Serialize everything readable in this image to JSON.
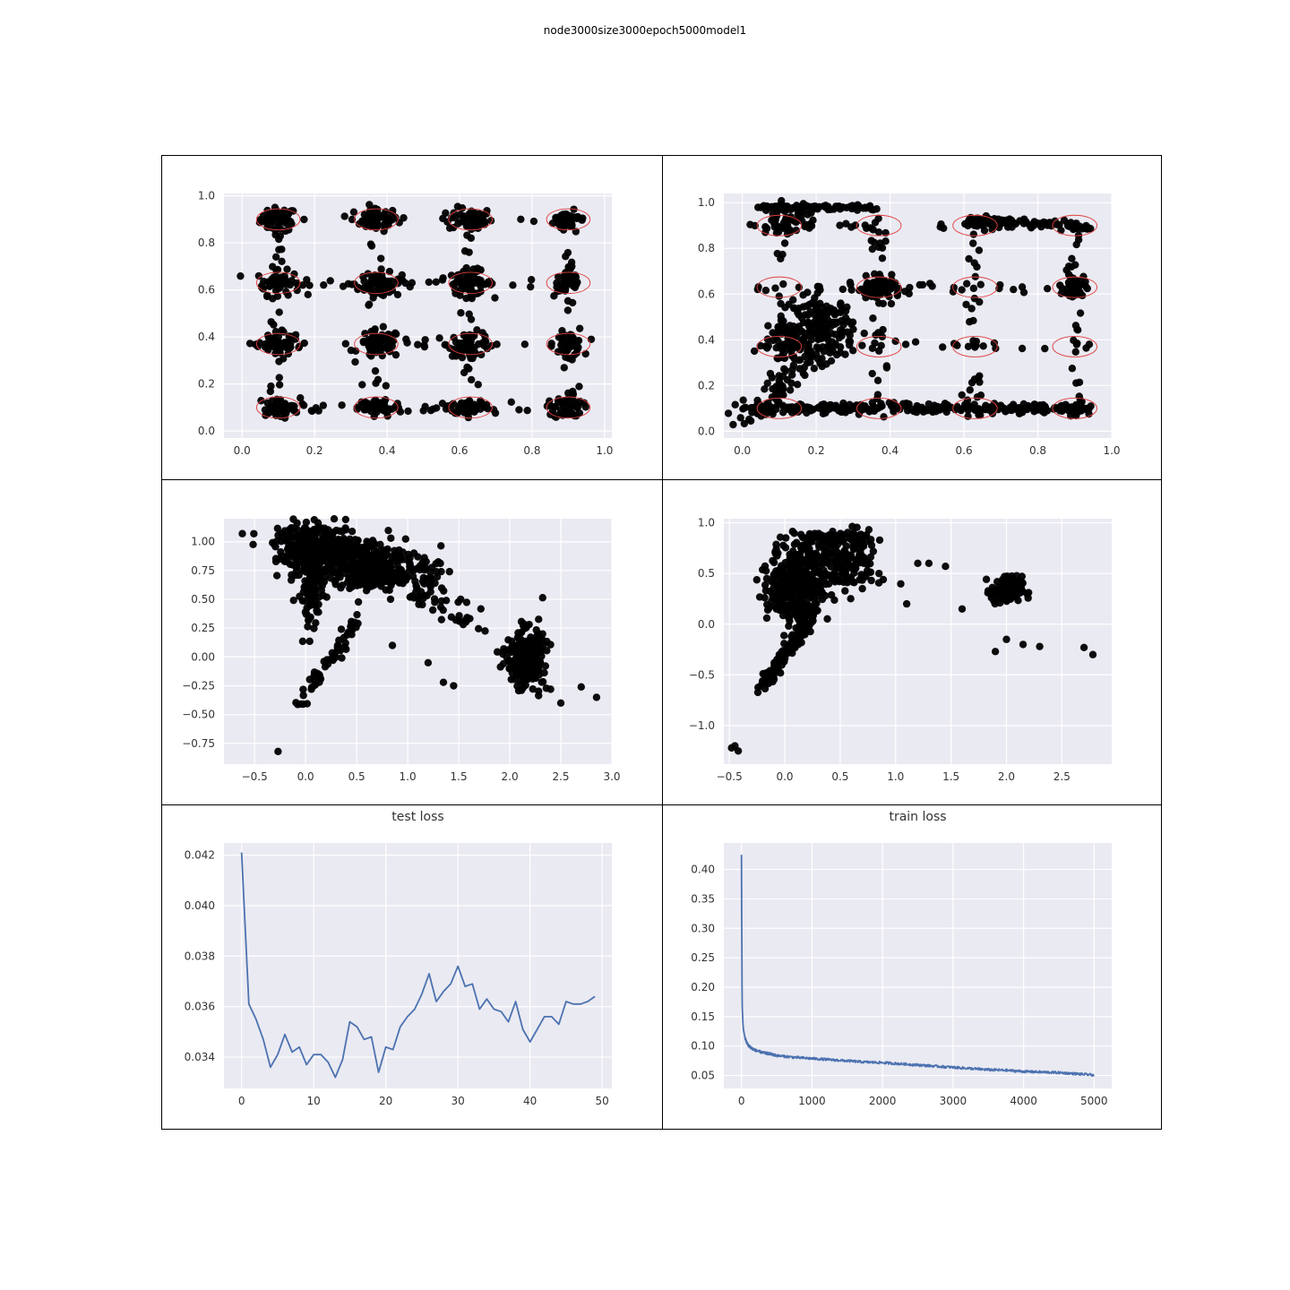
{
  "figure": {
    "title": "node3000size3000epoch5000model1"
  },
  "chart_data": [
    {
      "id": "top-left",
      "type": "scatter",
      "title": "",
      "xlabel": "",
      "ylabel": "",
      "xlim": [
        -0.05,
        1.02
      ],
      "ylim": [
        -0.03,
        1.01
      ],
      "xticks": [
        "0.0",
        "0.2",
        "0.4",
        "0.6",
        "0.8",
        "1.0"
      ],
      "yticks": [
        "0.0",
        "0.2",
        "0.4",
        "0.6",
        "0.8",
        "1.0"
      ],
      "grid": true,
      "points_color": "#000000",
      "circle_color": "#e04040",
      "clusters": [
        {
          "cx": 0.1,
          "cy": 0.9,
          "n": 45,
          "sx": 0.025,
          "sy": 0.025
        },
        {
          "cx": 0.37,
          "cy": 0.9,
          "n": 45,
          "sx": 0.03,
          "sy": 0.025
        },
        {
          "cx": 0.63,
          "cy": 0.9,
          "n": 45,
          "sx": 0.03,
          "sy": 0.025
        },
        {
          "cx": 0.9,
          "cy": 0.9,
          "n": 30,
          "sx": 0.02,
          "sy": 0.02
        },
        {
          "cx": 0.1,
          "cy": 0.63,
          "n": 45,
          "sx": 0.03,
          "sy": 0.025
        },
        {
          "cx": 0.38,
          "cy": 0.62,
          "n": 60,
          "sx": 0.03,
          "sy": 0.025
        },
        {
          "cx": 0.63,
          "cy": 0.63,
          "n": 50,
          "sx": 0.03,
          "sy": 0.025
        },
        {
          "cx": 0.9,
          "cy": 0.63,
          "n": 35,
          "sx": 0.02,
          "sy": 0.03
        },
        {
          "cx": 0.1,
          "cy": 0.37,
          "n": 40,
          "sx": 0.03,
          "sy": 0.025
        },
        {
          "cx": 0.38,
          "cy": 0.37,
          "n": 60,
          "sx": 0.03,
          "sy": 0.03
        },
        {
          "cx": 0.63,
          "cy": 0.37,
          "n": 50,
          "sx": 0.03,
          "sy": 0.025
        },
        {
          "cx": 0.9,
          "cy": 0.37,
          "n": 40,
          "sx": 0.02,
          "sy": 0.025
        },
        {
          "cx": 0.1,
          "cy": 0.1,
          "n": 40,
          "sx": 0.03,
          "sy": 0.02
        },
        {
          "cx": 0.38,
          "cy": 0.1,
          "n": 50,
          "sx": 0.03,
          "sy": 0.02
        },
        {
          "cx": 0.63,
          "cy": 0.1,
          "n": 40,
          "sx": 0.03,
          "sy": 0.015
        },
        {
          "cx": 0.9,
          "cy": 0.1,
          "n": 45,
          "sx": 0.02,
          "sy": 0.025
        }
      ],
      "scatter_noise": 260,
      "circles": [
        [
          0.1,
          0.9
        ],
        [
          0.37,
          0.9
        ],
        [
          0.63,
          0.9
        ],
        [
          0.9,
          0.9
        ],
        [
          0.1,
          0.63
        ],
        [
          0.37,
          0.63
        ],
        [
          0.63,
          0.63
        ],
        [
          0.9,
          0.63
        ],
        [
          0.1,
          0.37
        ],
        [
          0.37,
          0.37
        ],
        [
          0.63,
          0.37
        ],
        [
          0.9,
          0.37
        ],
        [
          0.1,
          0.1
        ],
        [
          0.37,
          0.1
        ],
        [
          0.63,
          0.1
        ],
        [
          0.9,
          0.1
        ]
      ],
      "circle_r": [
        0.06,
        0.06
      ]
    },
    {
      "id": "top-right",
      "type": "scatter",
      "title": "",
      "xlabel": "",
      "ylabel": "",
      "xlim": [
        -0.05,
        1.0
      ],
      "ylim": [
        -0.03,
        1.04
      ],
      "xticks": [
        "0.0",
        "0.2",
        "0.4",
        "0.6",
        "0.8",
        "1.0"
      ],
      "yticks": [
        "0.0",
        "0.2",
        "0.4",
        "0.6",
        "0.8",
        "1.0"
      ],
      "grid": true,
      "points_color": "#000000",
      "circle_color": "#e04040",
      "clusters": [
        {
          "cx": 0.22,
          "cy": 0.45,
          "n": 160,
          "sx": 0.04,
          "sy": 0.07
        },
        {
          "cx": 0.37,
          "cy": 0.62,
          "n": 70,
          "sx": 0.03,
          "sy": 0.025
        },
        {
          "cx": 0.12,
          "cy": 0.4,
          "n": 60,
          "sx": 0.02,
          "sy": 0.06
        },
        {
          "cx": 0.9,
          "cy": 0.63,
          "n": 40,
          "sx": 0.015,
          "sy": 0.03
        },
        {
          "cx": 0.12,
          "cy": 0.93,
          "n": 40,
          "sx": 0.03,
          "sy": 0.03
        }
      ],
      "lines": [
        {
          "x0": 0.0,
          "y0": 0.1,
          "x1": 0.95,
          "y1": 0.1,
          "n": 260,
          "jitter": 0.01
        },
        {
          "x0": 0.05,
          "y0": 0.98,
          "x1": 0.37,
          "y1": 0.98,
          "n": 80,
          "jitter": 0.006
        },
        {
          "x0": 0.6,
          "y0": 0.92,
          "x1": 0.93,
          "y1": 0.9,
          "n": 90,
          "jitter": 0.012
        },
        {
          "x0": 0.0,
          "y0": 0.03,
          "x1": 0.2,
          "y1": 0.35,
          "n": 60,
          "jitter": 0.02
        }
      ],
      "scatter_noise": 260,
      "circles": [
        [
          0.1,
          0.9
        ],
        [
          0.37,
          0.9
        ],
        [
          0.63,
          0.9
        ],
        [
          0.9,
          0.9
        ],
        [
          0.1,
          0.63
        ],
        [
          0.37,
          0.63
        ],
        [
          0.63,
          0.63
        ],
        [
          0.9,
          0.63
        ],
        [
          0.1,
          0.37
        ],
        [
          0.37,
          0.37
        ],
        [
          0.63,
          0.37
        ],
        [
          0.9,
          0.37
        ],
        [
          0.1,
          0.1
        ],
        [
          0.37,
          0.1
        ],
        [
          0.63,
          0.1
        ],
        [
          0.9,
          0.1
        ]
      ],
      "circle_r": [
        0.06,
        0.06
      ]
    },
    {
      "id": "middle-left",
      "type": "scatter",
      "title": "",
      "xlabel": "",
      "ylabel": "",
      "xlim": [
        -0.8,
        3.0
      ],
      "ylim": [
        -0.93,
        1.2
      ],
      "xticks": [
        "−0.5",
        "0.0",
        "0.5",
        "1.0",
        "1.5",
        "2.0",
        "2.5",
        "3.0"
      ],
      "yticks": [
        "−0.75",
        "−0.50",
        "−0.25",
        "0.00",
        "0.25",
        "0.50",
        "0.75",
        "1.00"
      ],
      "grid": true,
      "points_color": "#000000",
      "clusters": [
        {
          "cx": 0.1,
          "cy": 0.95,
          "n": 300,
          "sx": 0.2,
          "sy": 0.1
        },
        {
          "cx": 0.5,
          "cy": 0.82,
          "n": 300,
          "sx": 0.25,
          "sy": 0.12
        },
        {
          "cx": 0.9,
          "cy": 0.72,
          "n": 120,
          "sx": 0.2,
          "sy": 0.08
        },
        {
          "cx": 2.15,
          "cy": 0.0,
          "n": 260,
          "sx": 0.09,
          "sy": 0.12
        },
        {
          "cx": 0.05,
          "cy": 0.55,
          "n": 80,
          "sx": 0.06,
          "sy": 0.15
        }
      ],
      "lines": [
        {
          "x0": -0.1,
          "y0": -0.45,
          "x1": 0.5,
          "y1": 0.3,
          "n": 60,
          "jitter": 0.03
        },
        {
          "x0": 1.0,
          "y0": 0.6,
          "x1": 1.7,
          "y1": 0.3,
          "n": 40,
          "jitter": 0.06
        }
      ],
      "extra_points": [
        [
          -0.62,
          1.07
        ],
        [
          -0.27,
          -0.82
        ],
        [
          2.85,
          -0.35
        ],
        [
          2.7,
          -0.26
        ],
        [
          2.5,
          -0.4
        ],
        [
          1.45,
          -0.25
        ],
        [
          1.2,
          -0.05
        ],
        [
          2.4,
          -0.28
        ],
        [
          1.35,
          -0.22
        ],
        [
          0.85,
          0.1
        ]
      ]
    },
    {
      "id": "middle-right",
      "type": "scatter",
      "title": "",
      "xlabel": "",
      "ylabel": "",
      "xlim": [
        -0.55,
        2.95
      ],
      "ylim": [
        -1.38,
        1.04
      ],
      "xticks": [
        "−0.5",
        "0.0",
        "0.5",
        "1.0",
        "1.5",
        "2.0",
        "2.5"
      ],
      "yticks": [
        "−1.0",
        "−0.5",
        "0.0",
        "0.5",
        "1.0"
      ],
      "grid": true,
      "points_color": "#000000",
      "clusters": [
        {
          "cx": 0.1,
          "cy": 0.4,
          "n": 380,
          "sx": 0.12,
          "sy": 0.2
        },
        {
          "cx": 0.5,
          "cy": 0.6,
          "n": 180,
          "sx": 0.18,
          "sy": 0.15
        },
        {
          "cx": 2.0,
          "cy": 0.33,
          "n": 120,
          "sx": 0.07,
          "sy": 0.07
        }
      ],
      "lines": [
        {
          "x0": -0.2,
          "y0": -0.62,
          "x1": 0.3,
          "y1": 0.15,
          "n": 120,
          "jitter": 0.03
        },
        {
          "x0": 0.15,
          "y0": 0.85,
          "x1": 0.8,
          "y1": 0.85,
          "n": 50,
          "jitter": 0.03
        }
      ],
      "extra_points": [
        [
          -0.45,
          -1.2
        ],
        [
          -0.42,
          -1.25
        ],
        [
          -0.48,
          -1.22
        ],
        [
          1.2,
          0.6
        ],
        [
          1.3,
          0.6
        ],
        [
          1.45,
          0.57
        ],
        [
          1.1,
          0.2
        ],
        [
          1.6,
          0.15
        ],
        [
          2.0,
          -0.15
        ],
        [
          2.15,
          -0.2
        ],
        [
          2.3,
          -0.22
        ],
        [
          1.9,
          -0.27
        ],
        [
          2.7,
          -0.23
        ],
        [
          2.78,
          -0.3
        ],
        [
          0.7,
          0.35
        ],
        [
          0.85,
          0.5
        ]
      ]
    },
    {
      "id": "bottom-left",
      "type": "line",
      "title": "test loss",
      "xlabel": "",
      "ylabel": "",
      "xlim": [
        -2.45,
        51.35
      ],
      "ylim": [
        0.03276,
        0.04248
      ],
      "xticks": [
        "0",
        "10",
        "20",
        "30",
        "40",
        "50"
      ],
      "yticks": [
        "0.034",
        "0.036",
        "0.038",
        "0.040",
        "0.042"
      ],
      "grid": true,
      "line_color": "#4c72b0",
      "x": [
        0,
        1,
        2,
        3,
        4,
        5,
        6,
        7,
        8,
        9,
        10,
        11,
        12,
        13,
        14,
        15,
        16,
        17,
        18,
        19,
        20,
        21,
        22,
        23,
        24,
        25,
        26,
        27,
        28,
        29,
        30,
        31,
        32,
        33,
        34,
        35,
        36,
        37,
        38,
        39,
        40,
        41,
        42,
        43,
        44,
        45,
        46,
        47,
        48,
        49
      ],
      "y": [
        0.0421,
        0.0361,
        0.0355,
        0.0347,
        0.0336,
        0.0341,
        0.0349,
        0.0342,
        0.0344,
        0.0337,
        0.0341,
        0.0341,
        0.0338,
        0.0332,
        0.0339,
        0.0354,
        0.0352,
        0.0347,
        0.0348,
        0.0334,
        0.0344,
        0.0343,
        0.0352,
        0.0356,
        0.0359,
        0.0365,
        0.0373,
        0.0362,
        0.0366,
        0.0369,
        0.0376,
        0.0368,
        0.0369,
        0.0359,
        0.0363,
        0.0359,
        0.0358,
        0.0354,
        0.0362,
        0.0351,
        0.0346,
        0.0351,
        0.0356,
        0.0356,
        0.0353,
        0.0362,
        0.0361,
        0.0361,
        0.0362,
        0.0364
      ]
    },
    {
      "id": "bottom-right",
      "type": "line",
      "title": "train loss",
      "xlabel": "",
      "ylabel": "",
      "xlim": [
        -250,
        5250
      ],
      "ylim": [
        0.028,
        0.445
      ],
      "xticks": [
        "0",
        "1000",
        "2000",
        "3000",
        "4000",
        "5000"
      ],
      "yticks": [
        "0.05",
        "0.10",
        "0.15",
        "0.20",
        "0.25",
        "0.30",
        "0.35",
        "0.40"
      ],
      "grid": true,
      "line_color": "#4c72b0",
      "x": [
        0,
        5,
        10,
        20,
        30,
        50,
        75,
        100,
        150,
        200,
        300,
        400,
        500,
        750,
        1000,
        1250,
        1500,
        1750,
        2000,
        2250,
        2500,
        2750,
        3000,
        3250,
        3500,
        3750,
        4000,
        4250,
        4500,
        4750,
        5000
      ],
      "y": [
        0.425,
        0.28,
        0.17,
        0.14,
        0.125,
        0.113,
        0.105,
        0.1,
        0.095,
        0.092,
        0.088,
        0.086,
        0.083,
        0.08,
        0.078,
        0.076,
        0.074,
        0.072,
        0.071,
        0.069,
        0.067,
        0.065,
        0.063,
        0.061,
        0.059,
        0.058,
        0.056,
        0.055,
        0.054,
        0.052,
        0.05
      ],
      "noise_amp": 0.004
    }
  ]
}
